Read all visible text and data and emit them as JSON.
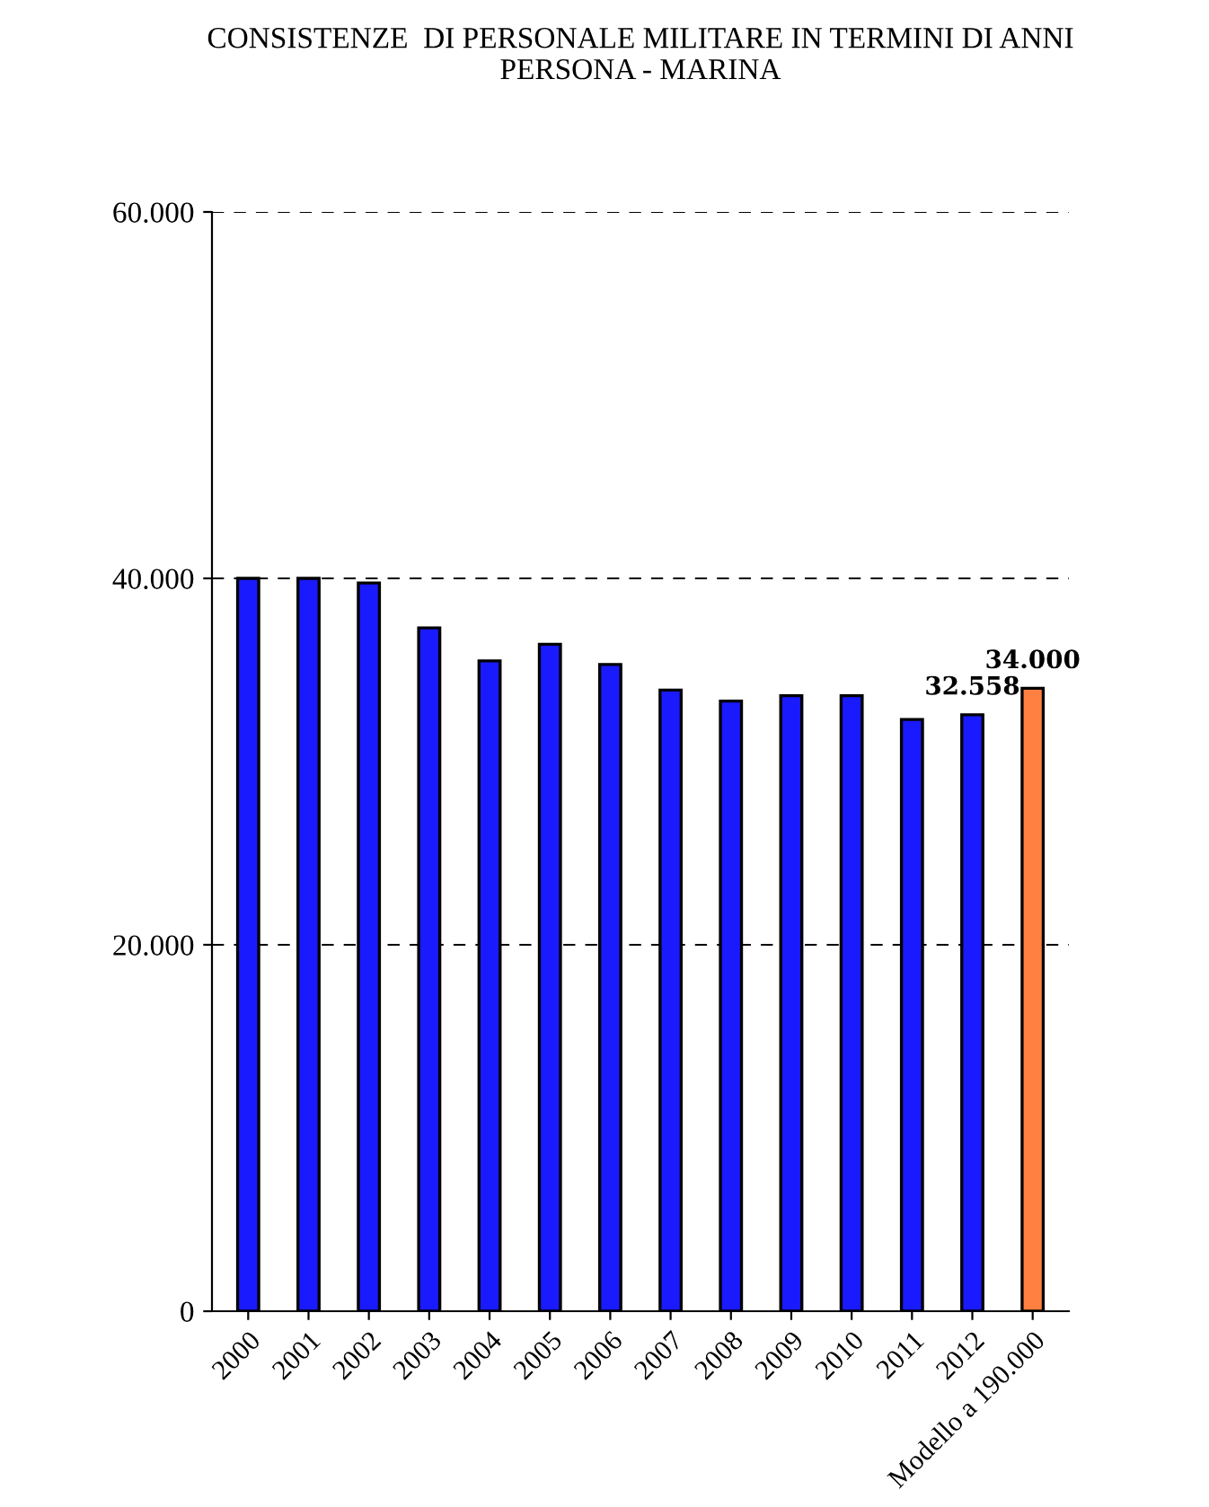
{
  "chart_data": {
    "type": "bar",
    "title": "CONSISTENZE  DI PERSONALE MILITARE IN TERMINI DI ANNI\nPERSONA - MARINA",
    "categories": [
      "2000",
      "2001",
      "2002",
      "2003",
      "2004",
      "2005",
      "2006",
      "2007",
      "2008",
      "2009",
      "2010",
      "2011",
      "2012",
      "Modello a 190.000"
    ],
    "values": [
      40000,
      40000,
      39750,
      37300,
      35500,
      36400,
      35300,
      33900,
      33300,
      33600,
      33600,
      32300,
      32558,
      34000
    ],
    "colors": [
      "#1a1aff",
      "#1a1aff",
      "#1a1aff",
      "#1a1aff",
      "#1a1aff",
      "#1a1aff",
      "#1a1aff",
      "#1a1aff",
      "#1a1aff",
      "#1a1aff",
      "#1a1aff",
      "#1a1aff",
      "#1a1aff",
      "#ff8040"
    ],
    "value_labels": [
      null,
      null,
      null,
      null,
      null,
      null,
      null,
      null,
      null,
      null,
      null,
      null,
      "32.558",
      "34.000"
    ],
    "ylim": [
      0,
      60000
    ],
    "yticks": [
      {
        "value": 0,
        "label": "0"
      },
      {
        "value": 20000,
        "label": "20.000"
      },
      {
        "value": 40000,
        "label": "40.000"
      },
      {
        "value": 60000,
        "label": "60.000"
      }
    ],
    "grid": "y",
    "legend": false
  }
}
